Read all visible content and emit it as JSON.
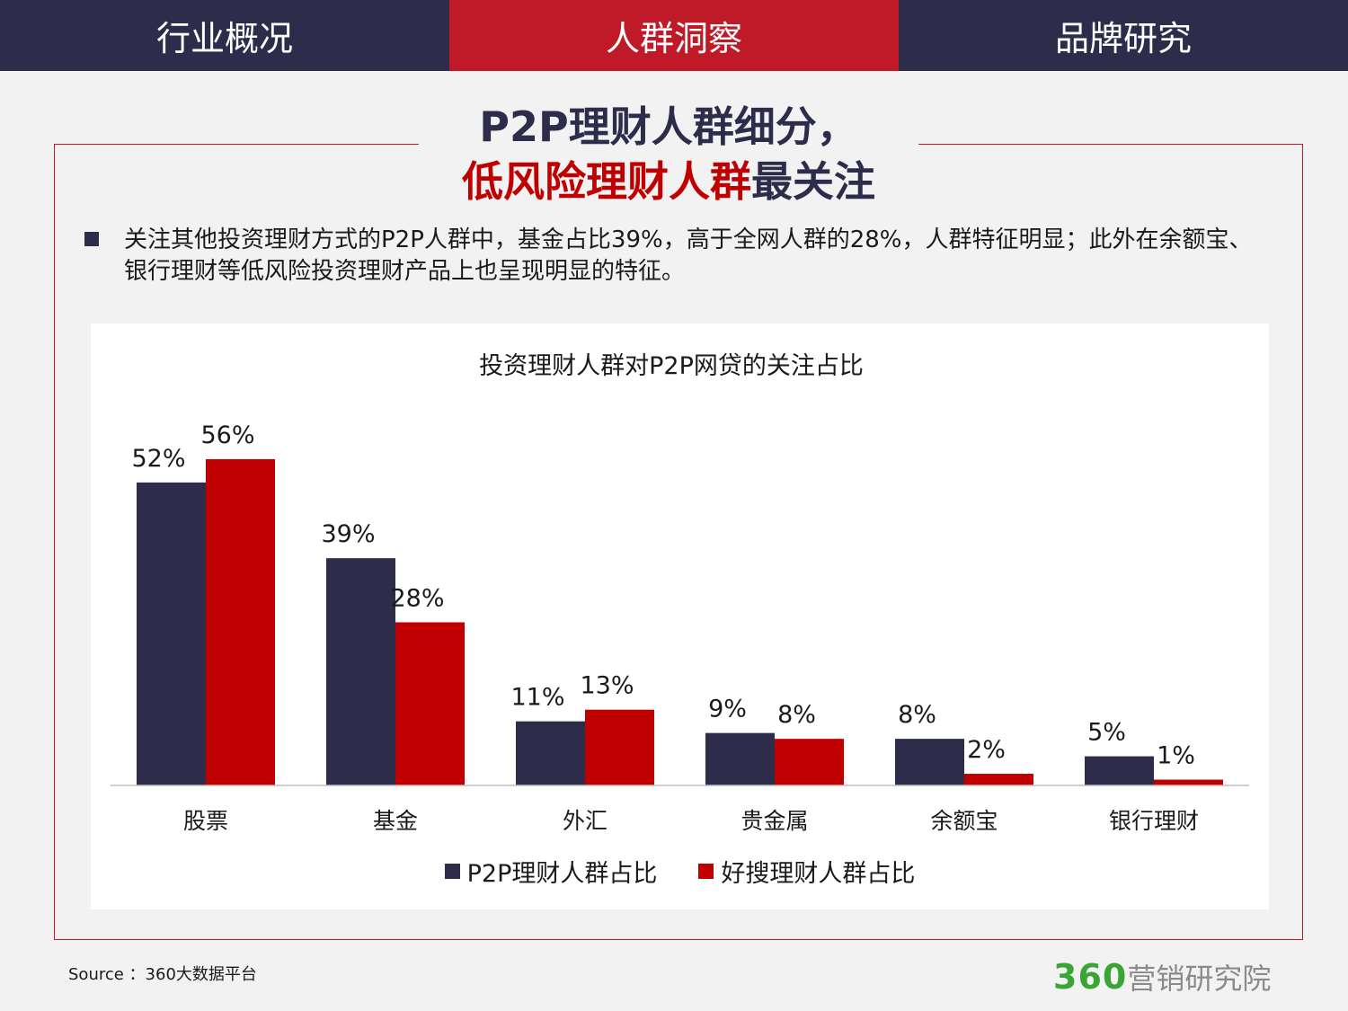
{
  "nav": {
    "tabs": [
      {
        "label": "行业概况"
      },
      {
        "label": "人群洞察"
      },
      {
        "label": "品牌研究"
      }
    ]
  },
  "title": {
    "line1": "P2P理财人群细分，",
    "line2_red": "低风险理财人群",
    "line2_dark": "最关注"
  },
  "bullet": {
    "text": "关注其他投资理财方式的P2P人群中，基金占比39%，高于全网人群的28%，人群特征明显；此外在余额宝、银行理财等低风险投资理财产品上也呈现明显的特征。"
  },
  "colors": {
    "dark": "#2d2d4b",
    "red": "#c00000",
    "nav_active": "#c01a28",
    "logo_green": "#3aa435"
  },
  "chart_data": {
    "type": "bar",
    "title": "投资理财人群对P2P网贷的关注占比",
    "categories": [
      "股票",
      "基金",
      "外汇",
      "贵金属",
      "余额宝",
      "银行理财"
    ],
    "series": [
      {
        "name": "P2P理财人群占比",
        "color": "#2d2d4b",
        "values": [
          52,
          39,
          11,
          9,
          8,
          5
        ],
        "labels": [
          "52%",
          "39%",
          "11%",
          "9%",
          "8%",
          "5%"
        ]
      },
      {
        "name": "好搜理财人群占比",
        "color": "#c00000",
        "values": [
          56,
          28,
          13,
          8,
          2,
          1
        ],
        "labels": [
          "56%",
          "28%",
          "13%",
          "8%",
          "2%",
          "1%"
        ]
      }
    ],
    "ylim": [
      0,
      60
    ],
    "legend": "bottom",
    "grid": false
  },
  "footer": {
    "source": "Source ：360大数据平台",
    "logo_num": "360",
    "logo_text": "营销研究院"
  }
}
